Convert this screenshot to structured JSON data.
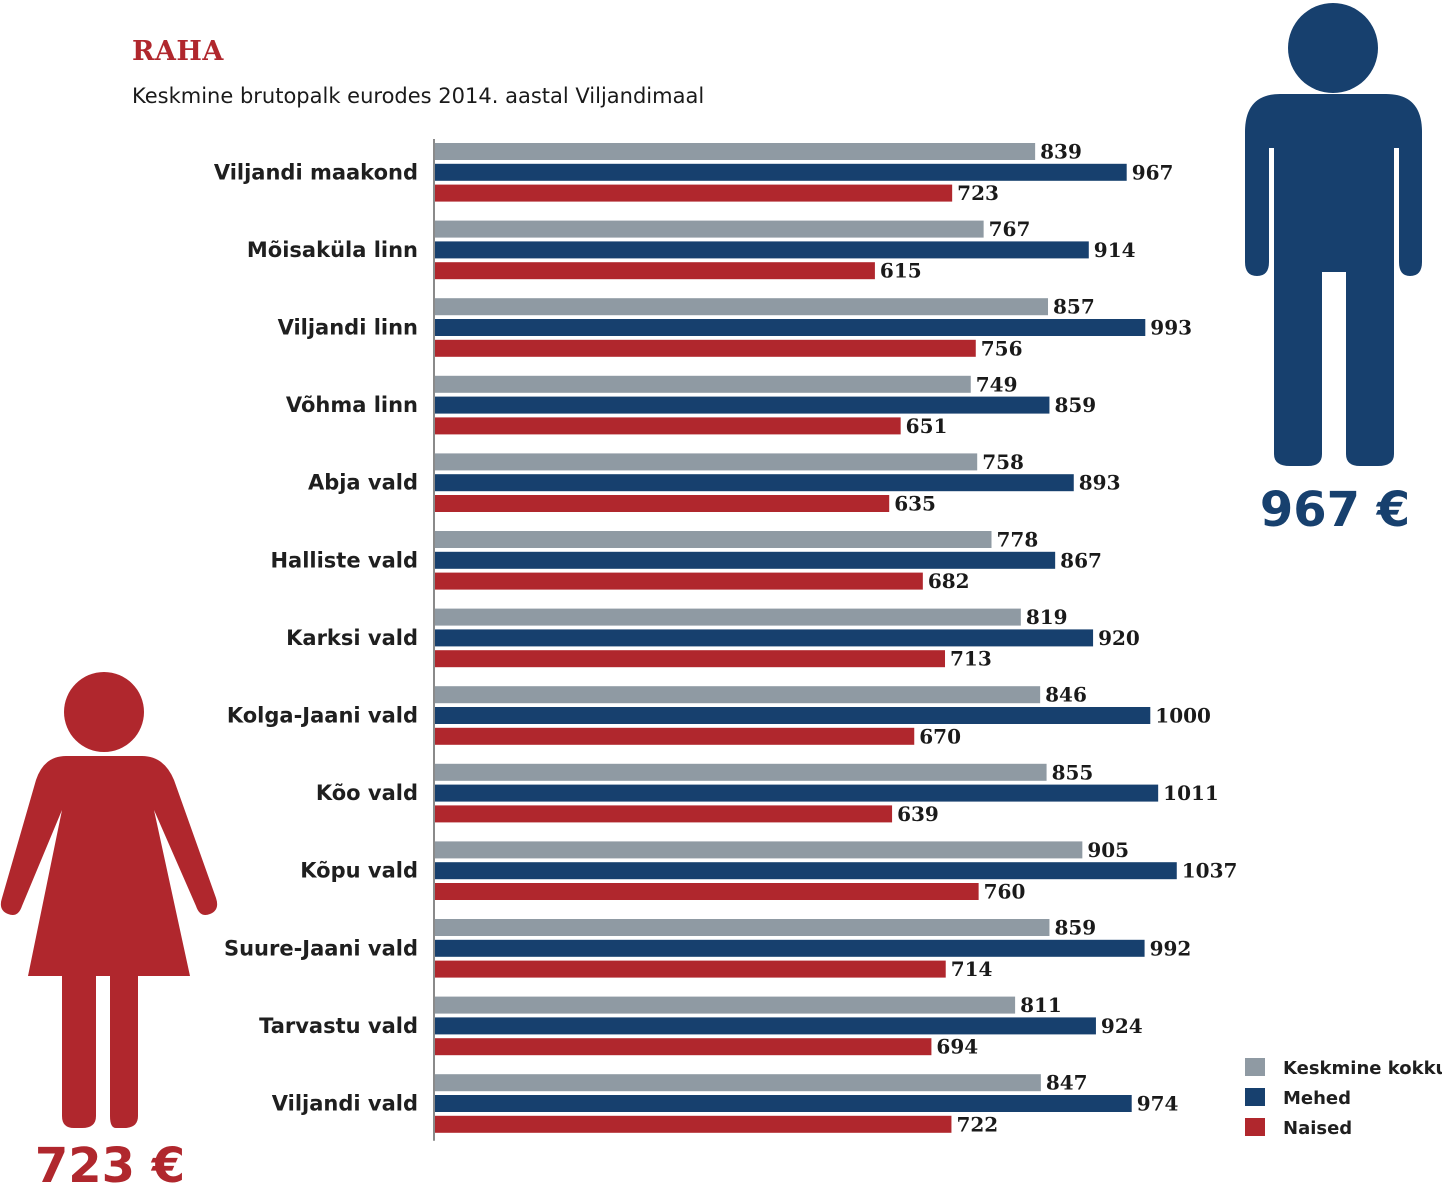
{
  "header": {
    "title": "RAHA",
    "subtitle": "Keskmine brutopalk eurodes 2014. aastal Viljandimaal"
  },
  "figures": {
    "man_value": "967 €",
    "woman_value": "723 €",
    "man_color": "#17406e",
    "woman_color": "#b0272d"
  },
  "chart_data": {
    "type": "bar",
    "orientation": "horizontal",
    "categories": [
      "Viljandi maakond",
      "Mõisaküla linn",
      "Viljandi linn",
      "Võhma linn",
      "Abja vald",
      "Halliste vald",
      "Karksi vald",
      "Kolga-Jaani vald",
      "Kõo vald",
      "Kõpu vald",
      "Suure-Jaani vald",
      "Tarvastu vald",
      "Viljandi vald"
    ],
    "series": [
      {
        "name": "Keskmine kokku",
        "color": "#8f9aa3",
        "values": [
          839,
          767,
          857,
          749,
          758,
          778,
          819,
          846,
          855,
          905,
          859,
          811,
          847
        ]
      },
      {
        "name": "Mehed",
        "color": "#17406e",
        "values": [
          967,
          914,
          993,
          859,
          893,
          867,
          920,
          1000,
          1011,
          1037,
          992,
          924,
          974
        ]
      },
      {
        "name": "Naised",
        "color": "#b0272d",
        "values": [
          723,
          615,
          756,
          651,
          635,
          682,
          713,
          670,
          639,
          760,
          714,
          694,
          722
        ]
      }
    ],
    "xlim": [
      0,
      1037
    ],
    "grid": false,
    "legend_position": "bottom-right"
  }
}
